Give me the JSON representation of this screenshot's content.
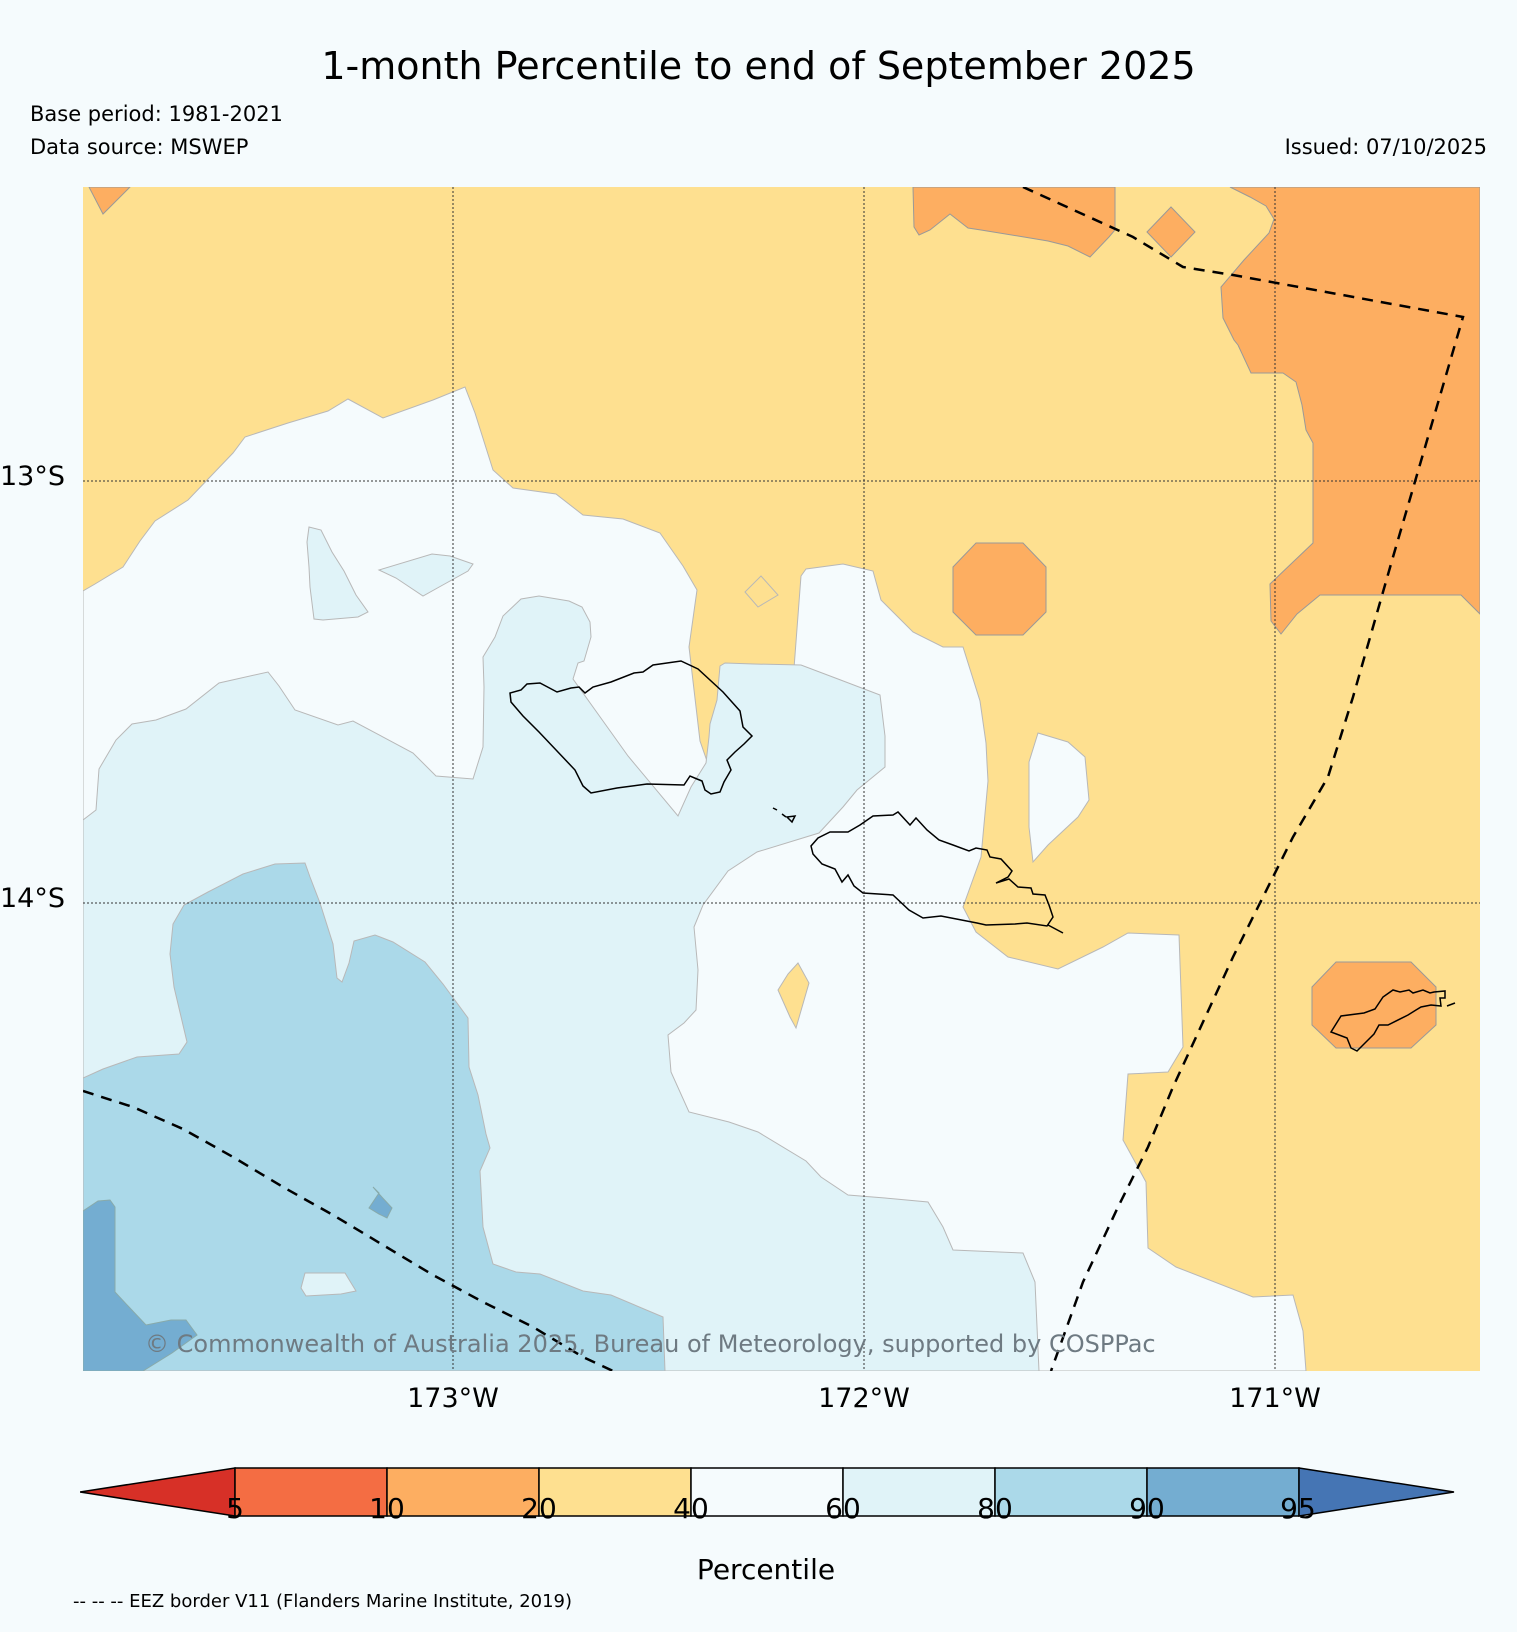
{
  "title": "1-month Percentile to end of September 2025",
  "base_period": "Base period: 1981-2021",
  "data_source": "Data source: MSWEP",
  "issued": "Issued: 07/10/2025",
  "copyright": "© Commonwealth of Australia 2025, Bureau of Meteorology, supported by COSPPac",
  "map": {
    "lat_labels": [
      "13°S",
      "14°S"
    ],
    "lon_labels": [
      "173°W",
      "172°W",
      "171°W"
    ],
    "lon_range": [
      -173.9,
      -170.5
    ],
    "lat_range": [
      -12.3,
      -15.1
    ]
  },
  "colorbar": {
    "title": "Percentile",
    "ticks": [
      "5",
      "10",
      "20",
      "40",
      "60",
      "80",
      "90",
      "95"
    ],
    "colors": [
      "#d73027",
      "#f46d43",
      "#fdae61",
      "#fee090",
      "#f5fbfd",
      "#e0f3f8",
      "#abd9e9",
      "#74add1",
      "#4575b4"
    ]
  },
  "legend_note": "-- -- -- EEZ border V11 (Flanders Marine Institute, 2019)"
}
